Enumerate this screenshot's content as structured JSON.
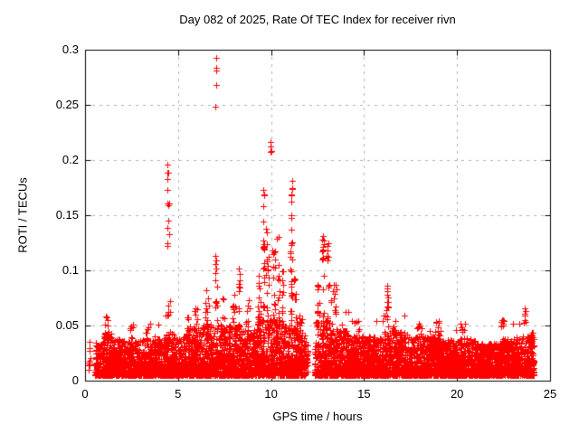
{
  "title": "Day 082 of 2025, Rate Of TEC Index for receiver rivn",
  "chart_data": {
    "type": "scatter",
    "title": "Day 082 of 2025, Rate Of TEC Index for receiver rivn",
    "xlabel": "GPS time / hours",
    "ylabel": "ROTI / TECUs",
    "xlim": [
      0,
      25
    ],
    "ylim": [
      0,
      0.3
    ],
    "xticks": {
      "values": [
        0,
        5,
        10,
        15,
        20,
        25
      ],
      "labels": [
        "0",
        "5",
        "10",
        "15",
        "20",
        "25"
      ]
    },
    "yticks": {
      "values": [
        0,
        0.05,
        0.1,
        0.15,
        0.2,
        0.25,
        0.3
      ],
      "labels": [
        "0",
        "0.05",
        "0.1",
        "0.15",
        "0.2",
        "0.25",
        "0.3"
      ]
    },
    "grid": true,
    "legend": "none",
    "marker": "plus",
    "marker_color": "#ff0000",
    "grid_color": "#b0b0b0",
    "border_color": "#000000",
    "seed": 20250082,
    "baseline_band": {
      "description": "dense scatter band of ROTI values; columns are [x_start_hour, x_end_hour, typical_band_top_TECU], floor ~0.005 TECU, data gap 11.87-12.33 h",
      "y_floor": 0.005,
      "density_per_hour": 300,
      "segments": [
        [
          0.55,
          1.0,
          0.036
        ],
        [
          1.0,
          1.45,
          0.045
        ],
        [
          1.45,
          2.2,
          0.038
        ],
        [
          2.2,
          3.1,
          0.036
        ],
        [
          3.1,
          4.2,
          0.038
        ],
        [
          4.2,
          4.8,
          0.044
        ],
        [
          4.8,
          5.4,
          0.04
        ],
        [
          5.4,
          6.3,
          0.048
        ],
        [
          6.3,
          7.4,
          0.052
        ],
        [
          7.4,
          8.4,
          0.05
        ],
        [
          8.4,
          9.2,
          0.046
        ],
        [
          9.2,
          10.6,
          0.056
        ],
        [
          10.6,
          11.5,
          0.052
        ],
        [
          11.5,
          11.87,
          0.042
        ],
        [
          12.33,
          13.3,
          0.054
        ],
        [
          13.3,
          14.2,
          0.046
        ],
        [
          14.2,
          16.0,
          0.04
        ],
        [
          16.0,
          17.2,
          0.044
        ],
        [
          17.2,
          19.5,
          0.04
        ],
        [
          19.5,
          21.0,
          0.038
        ],
        [
          21.0,
          22.2,
          0.034
        ],
        [
          22.2,
          23.2,
          0.038
        ],
        [
          23.2,
          24.15,
          0.042
        ]
      ]
    },
    "spike_clusters": [
      {
        "x": 0.25,
        "spread": 0.05,
        "ymin": 0.008,
        "ymax": 0.038,
        "n": 14
      },
      {
        "x": 1.15,
        "spread": 0.08,
        "ymin": 0.042,
        "ymax": 0.068,
        "n": 7
      },
      {
        "x": 2.5,
        "spread": 0.1,
        "ymin": 0.038,
        "ymax": 0.052,
        "n": 6
      },
      {
        "x": 3.3,
        "spread": 0.1,
        "ymin": 0.038,
        "ymax": 0.05,
        "n": 5
      },
      {
        "x": 4.45,
        "spread": 0.06,
        "ymin": 0.115,
        "ymax": 0.2,
        "n": 13
      },
      {
        "x": 4.5,
        "spread": 0.1,
        "ymin": 0.042,
        "ymax": 0.075,
        "n": 7
      },
      {
        "x": 5.55,
        "spread": 0.1,
        "ymin": 0.04,
        "ymax": 0.062,
        "n": 8
      },
      {
        "x": 5.95,
        "spread": 0.08,
        "ymin": 0.04,
        "ymax": 0.07,
        "n": 8
      },
      {
        "x": 6.55,
        "spread": 0.12,
        "ymin": 0.042,
        "ymax": 0.085,
        "n": 12
      },
      {
        "x": 7.05,
        "spread": 0.05,
        "ymin": 0.055,
        "ymax": 0.115,
        "n": 12
      },
      {
        "x": 7.45,
        "spread": 0.07,
        "ymin": 0.045,
        "ymax": 0.078,
        "n": 8
      },
      {
        "x": 7.97,
        "spread": 0.06,
        "ymin": 0.05,
        "ymax": 0.082,
        "n": 8
      },
      {
        "x": 8.27,
        "spread": 0.05,
        "ymin": 0.05,
        "ymax": 0.107,
        "n": 10
      },
      {
        "x": 8.75,
        "spread": 0.12,
        "ymin": 0.04,
        "ymax": 0.075,
        "n": 10
      },
      {
        "x": 9.35,
        "spread": 0.08,
        "ymin": 0.05,
        "ymax": 0.1,
        "n": 12
      },
      {
        "x": 9.6,
        "spread": 0.05,
        "ymin": 0.06,
        "ymax": 0.176,
        "n": 22
      },
      {
        "x": 9.8,
        "spread": 0.06,
        "ymin": 0.05,
        "ymax": 0.138,
        "n": 18
      },
      {
        "x": 10.15,
        "spread": 0.08,
        "ymin": 0.05,
        "ymax": 0.12,
        "n": 14
      },
      {
        "x": 10.4,
        "spread": 0.08,
        "ymin": 0.05,
        "ymax": 0.135,
        "n": 16
      },
      {
        "x": 10.62,
        "spread": 0.05,
        "ymin": 0.05,
        "ymax": 0.1,
        "n": 10
      },
      {
        "x": 11.1,
        "spread": 0.05,
        "ymin": 0.055,
        "ymax": 0.185,
        "n": 30
      },
      {
        "x": 11.3,
        "spread": 0.08,
        "ymin": 0.045,
        "ymax": 0.1,
        "n": 12
      },
      {
        "x": 11.6,
        "spread": 0.1,
        "ymin": 0.04,
        "ymax": 0.06,
        "n": 8
      },
      {
        "x": 11.95,
        "spread": 0.03,
        "ymin": 0.006,
        "ymax": 0.046,
        "n": 12
      },
      {
        "x": 12.55,
        "spread": 0.08,
        "ymin": 0.045,
        "ymax": 0.09,
        "n": 10
      },
      {
        "x": 12.8,
        "spread": 0.05,
        "ymin": 0.055,
        "ymax": 0.134,
        "n": 16
      },
      {
        "x": 13.05,
        "spread": 0.06,
        "ymin": 0.05,
        "ymax": 0.125,
        "n": 12
      },
      {
        "x": 13.45,
        "spread": 0.1,
        "ymin": 0.045,
        "ymax": 0.09,
        "n": 10
      },
      {
        "x": 14.6,
        "spread": 0.15,
        "ymin": 0.035,
        "ymax": 0.055,
        "n": 8
      },
      {
        "x": 16.25,
        "spread": 0.05,
        "ymin": 0.055,
        "ymax": 0.088,
        "n": 14
      },
      {
        "x": 16.6,
        "spread": 0.1,
        "ymin": 0.04,
        "ymax": 0.058,
        "n": 8
      },
      {
        "x": 18.0,
        "spread": 0.15,
        "ymin": 0.035,
        "ymax": 0.052,
        "n": 8
      },
      {
        "x": 18.95,
        "spread": 0.1,
        "ymin": 0.035,
        "ymax": 0.055,
        "n": 8
      },
      {
        "x": 20.3,
        "spread": 0.1,
        "ymin": 0.035,
        "ymax": 0.05,
        "n": 6
      },
      {
        "x": 22.45,
        "spread": 0.08,
        "ymin": 0.04,
        "ymax": 0.056,
        "n": 8
      },
      {
        "x": 23.65,
        "spread": 0.08,
        "ymin": 0.05,
        "ymax": 0.068,
        "n": 8
      },
      {
        "x": 24.0,
        "spread": 0.1,
        "ymin": 0.03,
        "ymax": 0.05,
        "n": 6
      }
    ],
    "outlier_points": [
      [
        7.05,
        0.293
      ],
      [
        7.04,
        0.284
      ],
      [
        7.06,
        0.281
      ],
      [
        7.05,
        0.268
      ],
      [
        7.02,
        0.248
      ],
      [
        9.98,
        0.216
      ],
      [
        9.99,
        0.212
      ],
      [
        10.0,
        0.208
      ],
      [
        9.97,
        0.207
      ],
      [
        13.1,
        0.125
      ],
      [
        13.08,
        0.112
      ]
    ]
  }
}
